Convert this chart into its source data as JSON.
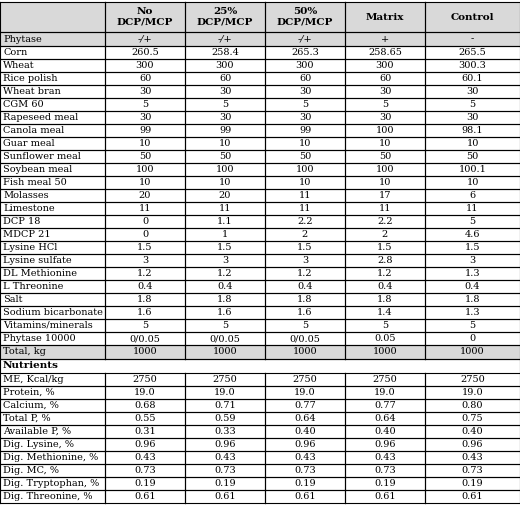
{
  "col_headers": [
    "",
    "No\nDCP/MCP",
    "25%\nDCP/MCP",
    "50%\nDCP/MCP",
    "Matrix",
    "Control"
  ],
  "row1_phytase": [
    "Phytase",
    "-/+",
    "-/+",
    "-/+",
    "+",
    "-"
  ],
  "ingredient_rows": [
    [
      "Corn",
      "260.5",
      "258.4",
      "265.3",
      "258.65",
      "265.5"
    ],
    [
      "Wheat",
      "300",
      "300",
      "300",
      "300",
      "300.3"
    ],
    [
      "Rice polish",
      "60",
      "60",
      "60",
      "60",
      "60.1"
    ],
    [
      "Wheat bran",
      "30",
      "30",
      "30",
      "30",
      "30"
    ],
    [
      "CGM 60",
      "5",
      "5",
      "5",
      "5",
      "5"
    ],
    [
      "Rapeseed meal",
      "30",
      "30",
      "30",
      "30",
      "30"
    ],
    [
      "Canola meal",
      "99",
      "99",
      "99",
      "100",
      "98.1"
    ],
    [
      "Guar meal",
      "10",
      "10",
      "10",
      "10",
      "10"
    ],
    [
      "Sunflower meal",
      "50",
      "50",
      "50",
      "50",
      "50"
    ],
    [
      "Soybean meal",
      "100",
      "100",
      "100",
      "100",
      "100.1"
    ],
    [
      "Fish meal 50",
      "10",
      "10",
      "10",
      "10",
      "10"
    ],
    [
      "Molasses",
      "20",
      "20",
      "11",
      "17",
      "6"
    ],
    [
      "Limestone",
      "11",
      "11",
      "11",
      "11",
      "11"
    ],
    [
      "DCP 18",
      "0",
      "1.1",
      "2.2",
      "2.2",
      "5"
    ],
    [
      "MDCP 21",
      "0",
      "1",
      "2",
      "2",
      "4.6"
    ],
    [
      "Lysine HCl",
      "1.5",
      "1.5",
      "1.5",
      "1.5",
      "1.5"
    ],
    [
      "Lysine sulfate",
      "3",
      "3",
      "3",
      "2.8",
      "3"
    ],
    [
      "DL Methionine",
      "1.2",
      "1.2",
      "1.2",
      "1.2",
      "1.3"
    ],
    [
      "L Threonine",
      "0.4",
      "0.4",
      "0.4",
      "0.4",
      "0.4"
    ],
    [
      "Salt",
      "1.8",
      "1.8",
      "1.8",
      "1.8",
      "1.8"
    ],
    [
      "Sodium bicarbonate",
      "1.6",
      "1.6",
      "1.6",
      "1.4",
      "1.3"
    ],
    [
      "Vitamins/minerals",
      "5",
      "5",
      "5",
      "5",
      "5"
    ],
    [
      "Phytase 10000",
      "0/0.05",
      "0/0.05",
      "0/0.05",
      "0.05",
      "0"
    ]
  ],
  "total_row": [
    "Total, kg",
    "1000",
    "1000",
    "1000",
    "1000",
    "1000"
  ],
  "nutrients_header": [
    "Nutrients",
    "",
    "",
    "",
    "",
    ""
  ],
  "nutrient_rows": [
    [
      "ME, Kcal/kg",
      "2750",
      "2750",
      "2750",
      "2750",
      "2750"
    ],
    [
      "Protein, %",
      "19.0",
      "19.0",
      "19.0",
      "19.0",
      "19.0"
    ],
    [
      "Calcium, %",
      "0.68",
      "0.71",
      "0.77",
      "0.77",
      "0.80"
    ],
    [
      "Total P, %",
      "0.55",
      "0.59",
      "0.64",
      "0.64",
      "0.75"
    ],
    [
      "Available P, %",
      "0.31",
      "0.33",
      "0.40",
      "0.40",
      "0.40"
    ],
    [
      "Dig. Lysine, %",
      "0.96",
      "0.96",
      "0.96",
      "0.96",
      "0.96"
    ],
    [
      "Dig. Methionine, %",
      "0.43",
      "0.43",
      "0.43",
      "0.43",
      "0.43"
    ],
    [
      "Dig. MC, %",
      "0.73",
      "0.73",
      "0.73",
      "0.73",
      "0.73"
    ],
    [
      "Dig. Tryptophan, %",
      "0.19",
      "0.19",
      "0.19",
      "0.19",
      "0.19"
    ],
    [
      "Dig. Threonine, %",
      "0.61",
      "0.61",
      "0.61",
      "0.61",
      "0.61"
    ]
  ],
  "bg_color": "#ffffff",
  "header_bg": "#d9d9d9",
  "line_color": "#000000",
  "font_size": 7.0,
  "header_font_size": 7.5
}
